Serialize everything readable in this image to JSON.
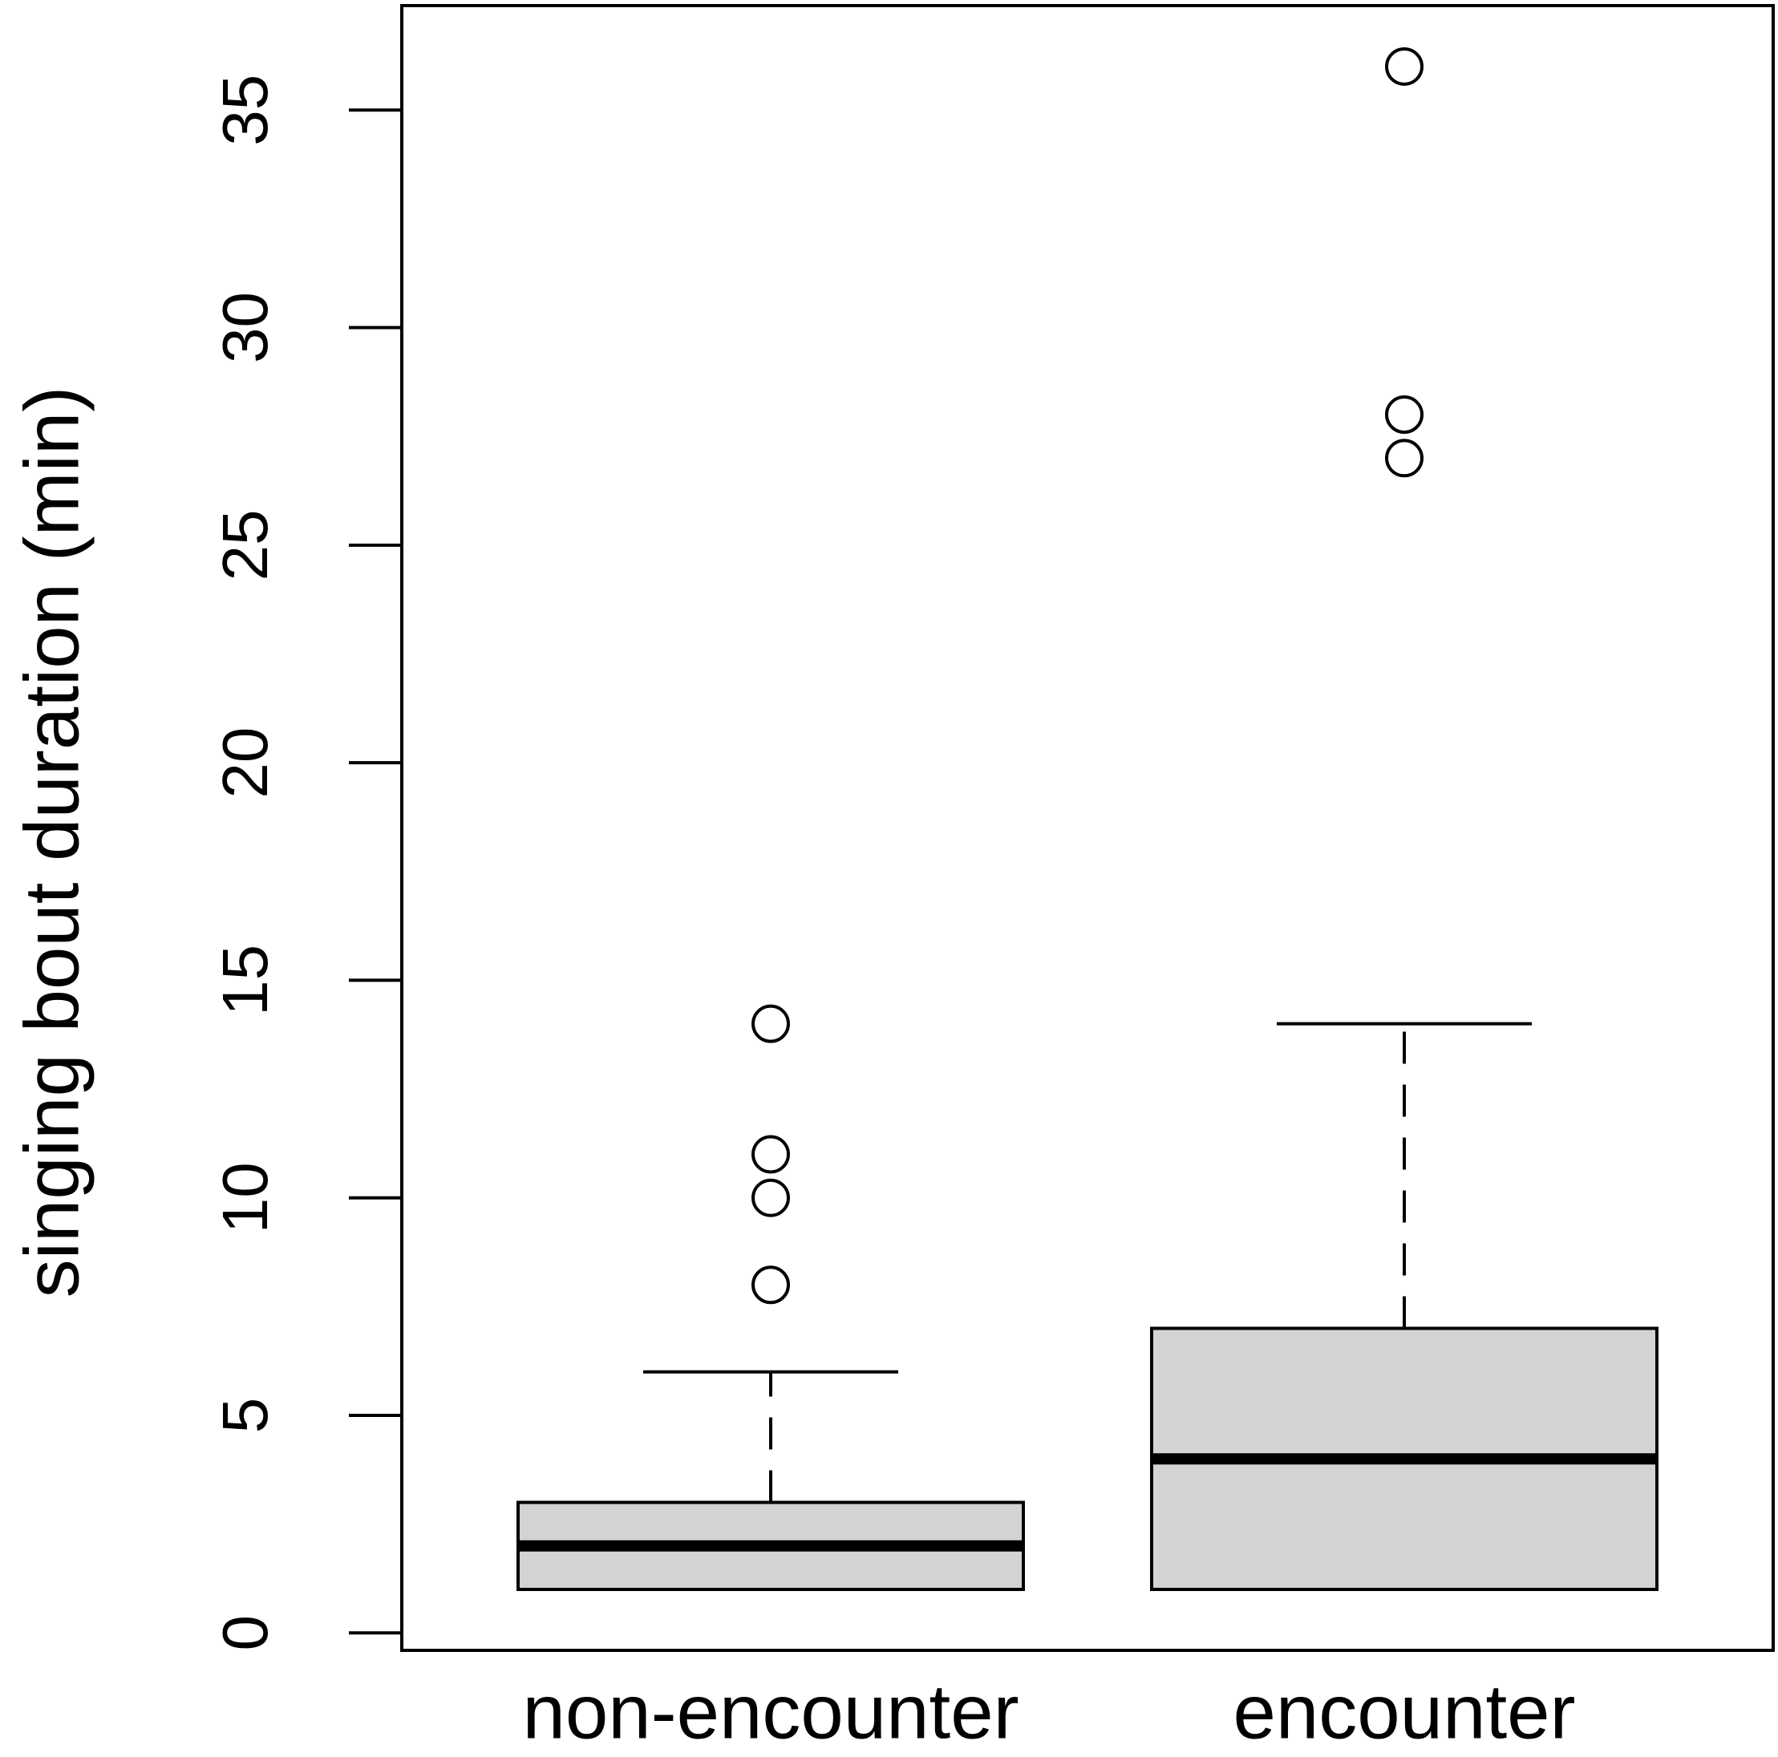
{
  "chart_data": {
    "type": "boxplot",
    "y_label": "singing bout duration (min)",
    "categories": [
      "non-encounter",
      "encounter"
    ],
    "boxes": [
      {
        "whislo": 1,
        "q1": 1,
        "med": 2,
        "q3": 3,
        "whishi": 6,
        "outliers": [
          8,
          10,
          11,
          14
        ]
      },
      {
        "whislo": 1,
        "q1": 1,
        "med": 4,
        "q3": 7,
        "whishi": 14,
        "outliers": [
          27,
          28,
          36
        ]
      }
    ],
    "color": "#d3d3d3",
    "ylim": [
      -0.4,
      37.4
    ],
    "yticks": [
      0,
      5,
      10,
      15,
      20,
      25,
      30,
      35
    ],
    "grid": false
  }
}
